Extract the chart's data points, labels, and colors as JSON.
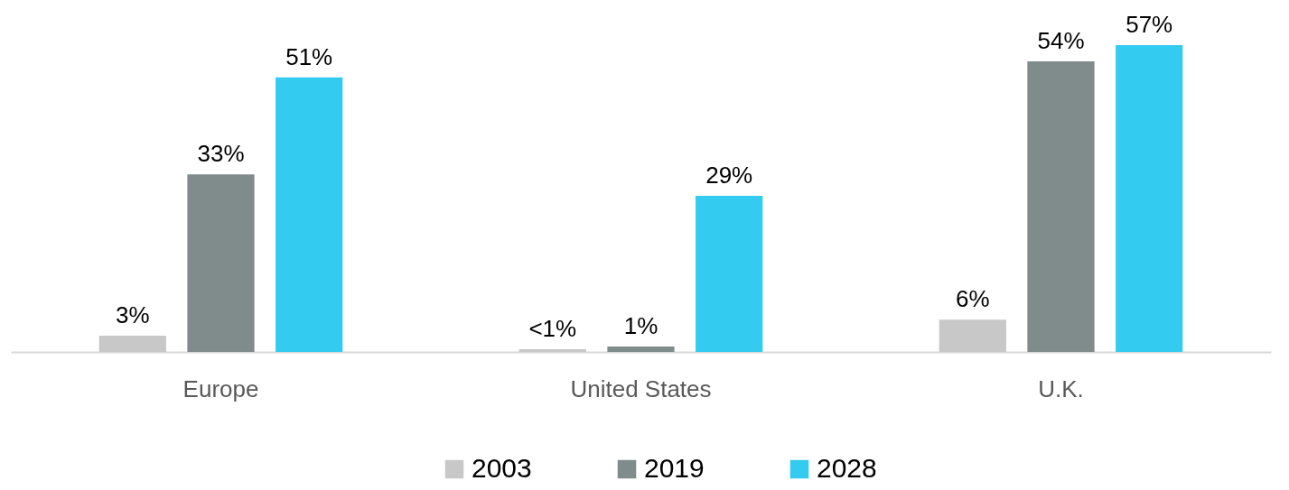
{
  "chart_data": {
    "type": "bar",
    "categories": [
      "Europe",
      "United States",
      "U.K."
    ],
    "series": [
      {
        "name": "2003",
        "color": "#c8c8c8",
        "values": [
          3,
          0.5,
          6
        ],
        "value_labels": [
          "3%",
          "<1%",
          "6%"
        ]
      },
      {
        "name": "2019",
        "color": "#808b8b",
        "values": [
          33,
          1,
          54
        ],
        "value_labels": [
          "33%",
          "1%",
          "54%"
        ]
      },
      {
        "name": "2028",
        "color": "#33ccf0",
        "values": [
          51,
          29,
          57
        ],
        "value_labels": [
          "51%",
          "29%",
          "57%"
        ]
      }
    ],
    "legend": "bottom",
    "grid": false
  }
}
